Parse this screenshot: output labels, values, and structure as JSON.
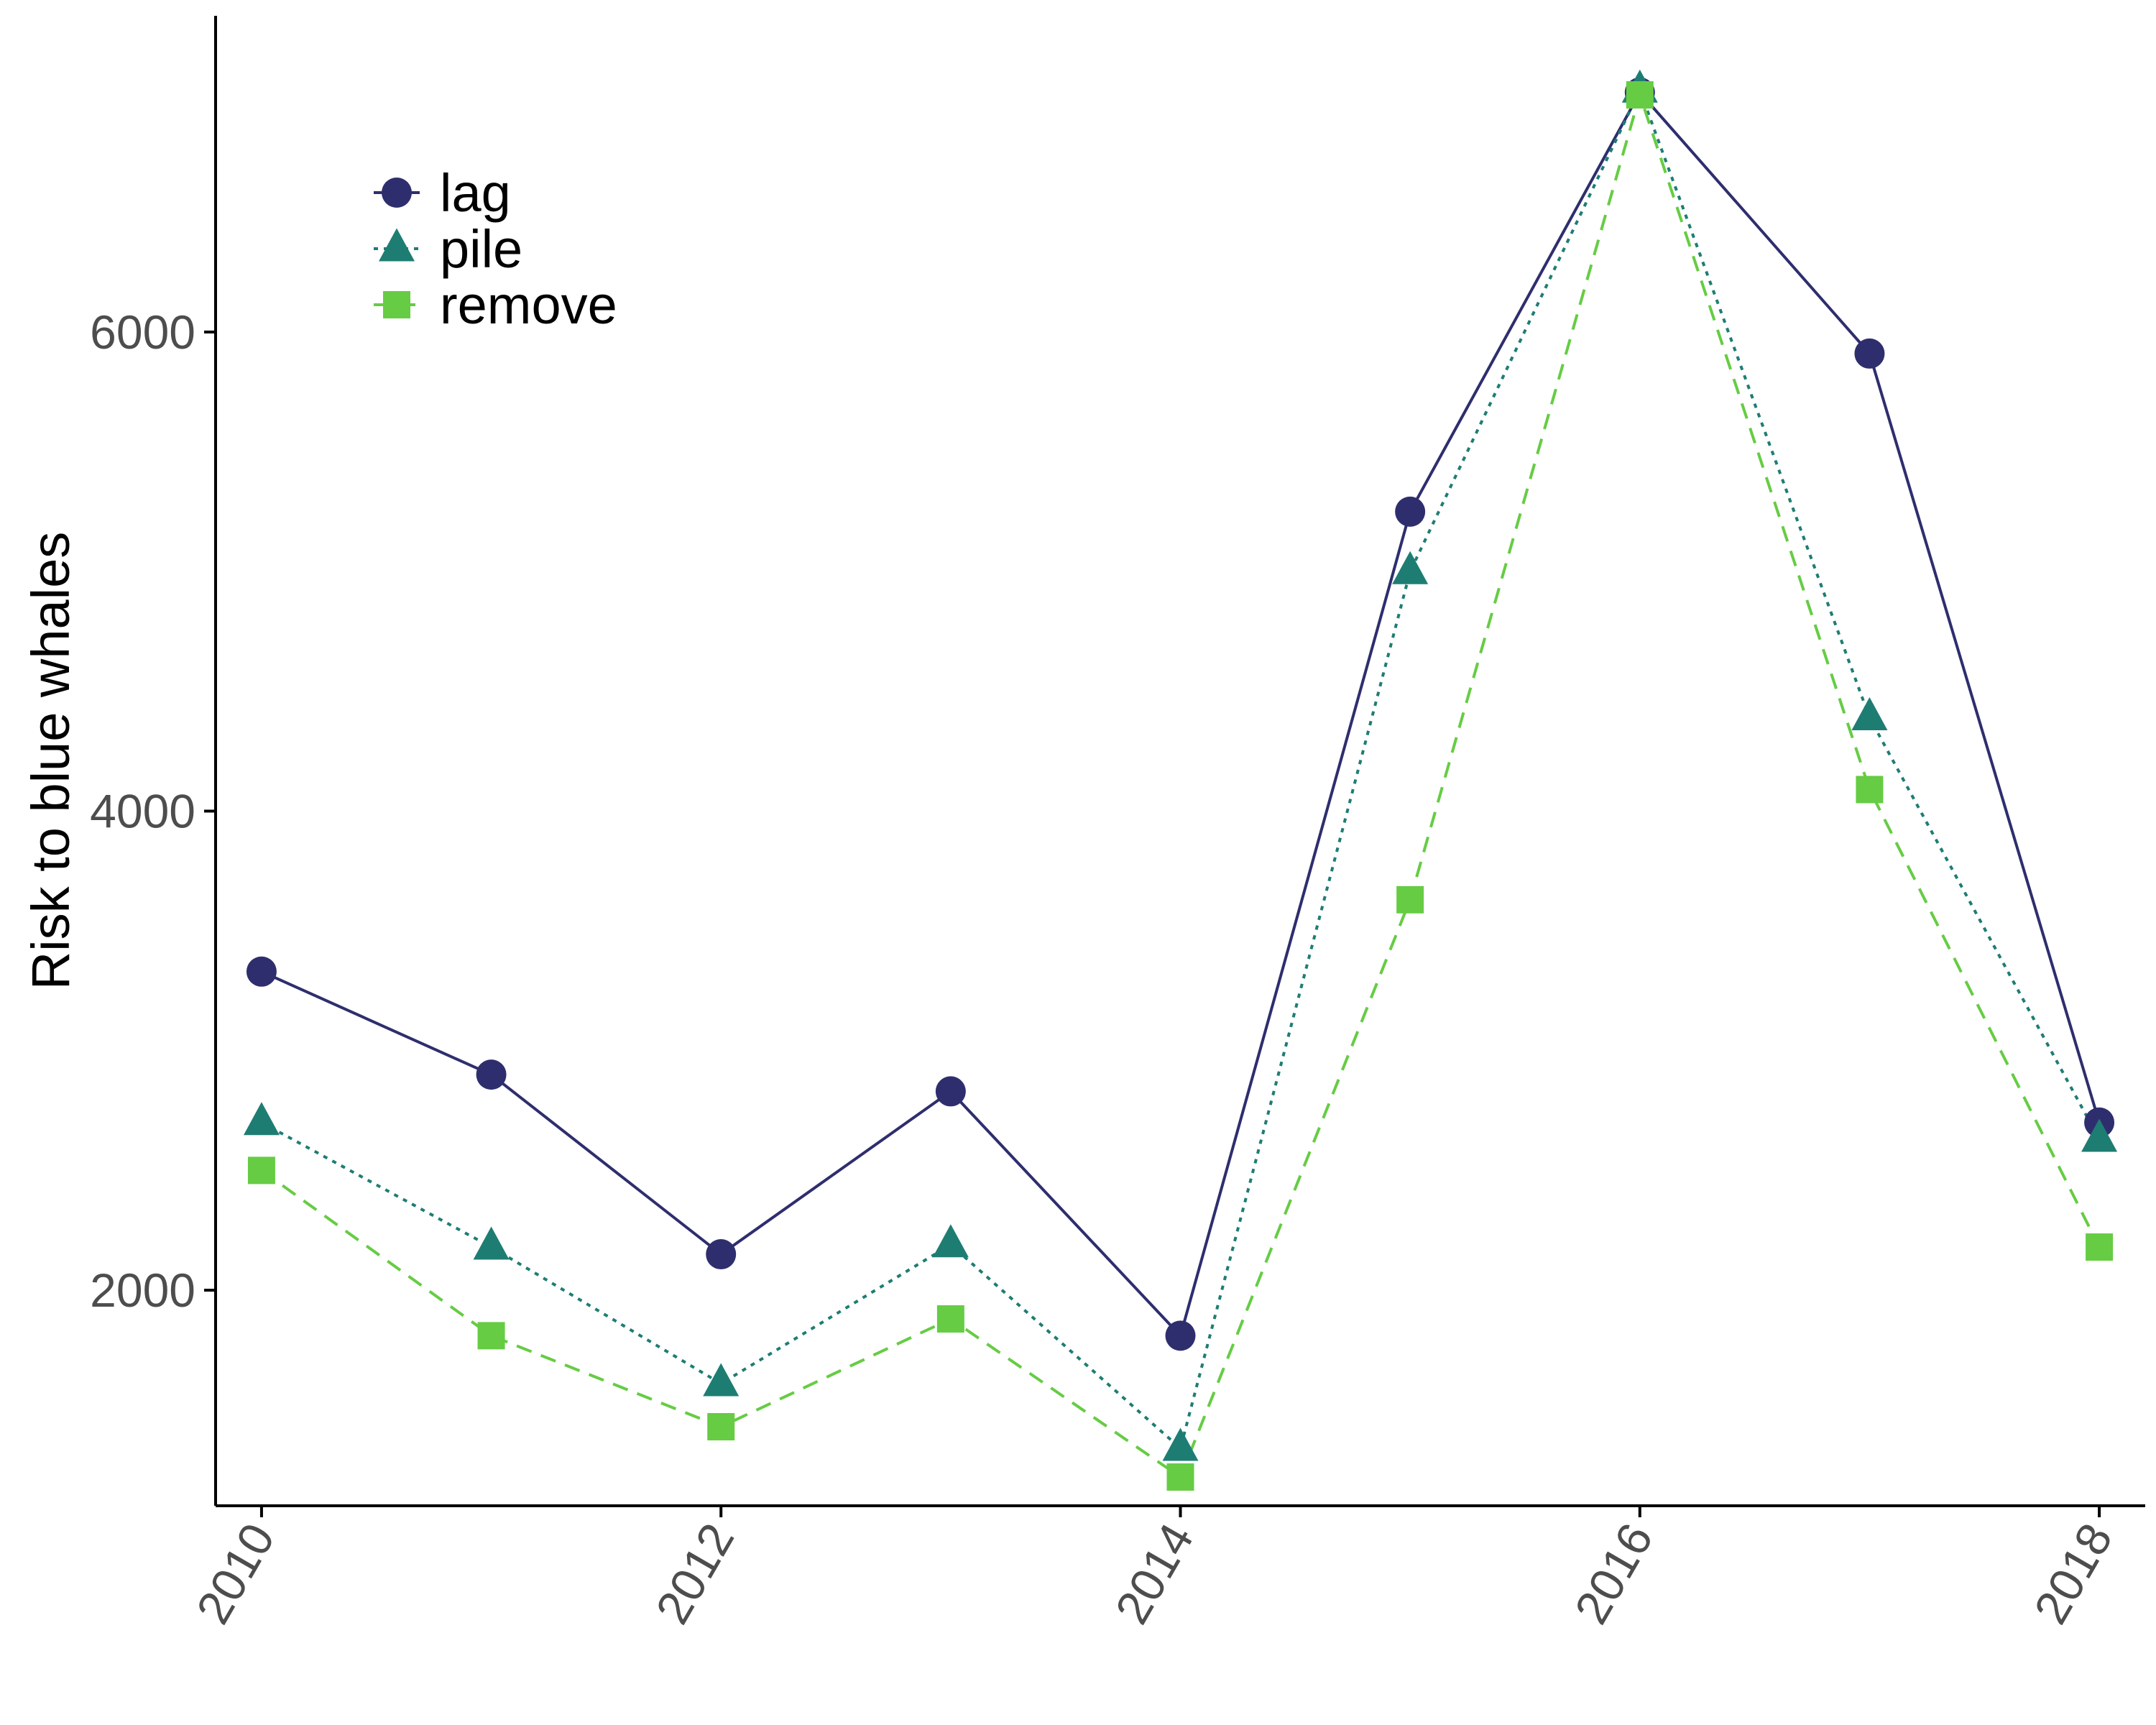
{
  "chart_data": {
    "type": "line",
    "title": "",
    "xlabel": "",
    "ylabel": "Risk to blue whales",
    "x": [
      2010,
      2011,
      2012,
      2013,
      2014,
      2015,
      2016,
      2017,
      2018
    ],
    "xticks": [
      "2010",
      "2012",
      "2014",
      "2016",
      "2018"
    ],
    "yticks": [
      "2000",
      "4000",
      "6000"
    ],
    "xlim": [
      2009.8,
      2018.2
    ],
    "ylim": [
      1100,
      7320
    ],
    "grid": false,
    "legend_position": "top-left",
    "series": [
      {
        "name": "lag",
        "color": "#2e2e6e",
        "marker": "circle",
        "line": "solid",
        "values": [
          3330,
          2900,
          2150,
          2830,
          1810,
          5250,
          7000,
          5910,
          2700
        ]
      },
      {
        "name": "pile",
        "color": "#1e7d73",
        "marker": "triangle",
        "line": "dotted",
        "values": [
          2700,
          2180,
          1610,
          2190,
          1340,
          5000,
          7010,
          4390,
          2630
        ]
      },
      {
        "name": "remove",
        "color": "#66cc44",
        "marker": "square",
        "line": "dashed",
        "values": [
          2500,
          1810,
          1430,
          1880,
          1220,
          3630,
          6990,
          4090,
          2180
        ]
      }
    ]
  }
}
